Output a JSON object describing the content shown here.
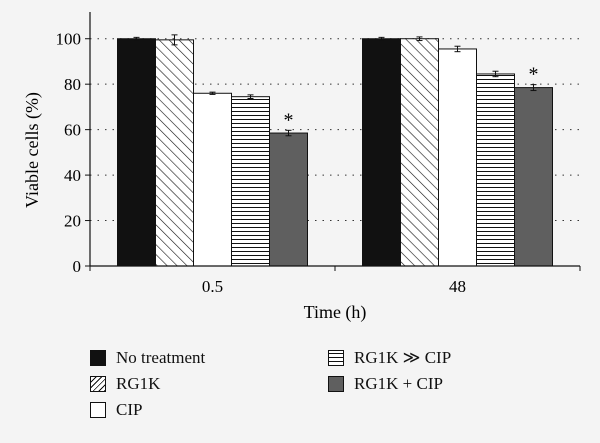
{
  "chart_data": {
    "type": "bar",
    "title": "",
    "xlabel": "Time (h)",
    "ylabel": "Viable cells (%)",
    "categories": [
      "0.5",
      "48"
    ],
    "ylim": [
      0,
      110
    ],
    "yticks": [
      0,
      20,
      40,
      60,
      80,
      100
    ],
    "grid": "horizontal-dotted",
    "legend_position": "bottom",
    "series": [
      {
        "name": "No treatment",
        "values": [
          100,
          100
        ],
        "errors": [
          0.6,
          0.6
        ],
        "pattern": "solid-black"
      },
      {
        "name": "RG1K",
        "values": [
          99.5,
          100
        ],
        "errors": [
          2.2,
          0.8
        ],
        "pattern": "diagonal-hatch"
      },
      {
        "name": "CIP",
        "values": [
          76,
          95.5
        ],
        "errors": [
          0.5,
          1.2
        ],
        "pattern": "white"
      },
      {
        "name": "RG1K ≫ CIP",
        "values": [
          74.5,
          84.5
        ],
        "errors": [
          0.8,
          1.2
        ],
        "pattern": "horizontal-lines"
      },
      {
        "name": "RG1K + CIP",
        "values": [
          58.5,
          78.5
        ],
        "errors": [
          1.2,
          1.3
        ],
        "pattern": "solid-gray"
      }
    ],
    "annotations": [
      {
        "text": "*",
        "series": "RG1K + CIP",
        "category": "0.5"
      },
      {
        "text": "*",
        "series": "RG1K + CIP",
        "category": "48"
      }
    ]
  }
}
